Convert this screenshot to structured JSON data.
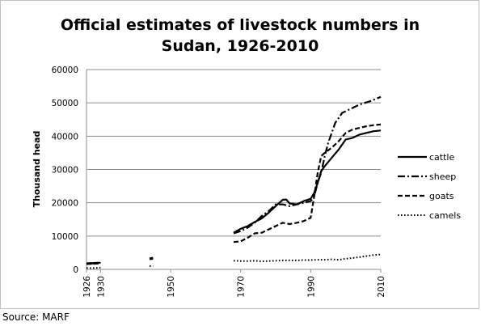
{
  "chart_data": {
    "type": "line",
    "title": "Official estimates of livestock numbers in Sudan, 1926-2010",
    "title_lines": [
      "Official estimates of livestock numbers in",
      "Sudan, 1926-2010"
    ],
    "xlabel": "",
    "ylabel": "Thousand head",
    "xlim": [
      1926,
      2010
    ],
    "ylim": [
      0,
      60000
    ],
    "x_ticks": [
      1926,
      1930,
      1950,
      1970,
      1990,
      2010
    ],
    "y_ticks": [
      0,
      10000,
      20000,
      30000,
      40000,
      50000,
      60000
    ],
    "grid": "horizontal",
    "legend_position": "right",
    "series": [
      {
        "name": "cattle",
        "style": "solid",
        "segments": [
          [
            [
              1926,
              1800
            ],
            [
              1927,
              1900
            ],
            [
              1928,
              1900
            ],
            [
              1929,
              2000
            ],
            [
              1930,
              2000
            ]
          ],
          [
            [
              1968,
              11000
            ],
            [
              1970,
              12200
            ],
            [
              1972,
              13000
            ],
            [
              1974,
              14200
            ],
            [
              1976,
              15300
            ],
            [
              1978,
              17000
            ],
            [
              1980,
              19000
            ],
            [
              1982,
              20900
            ],
            [
              1983,
              21000
            ],
            [
              1984,
              19800
            ],
            [
              1986,
              19500
            ],
            [
              1988,
              20500
            ],
            [
              1990,
              21200
            ],
            [
              1991,
              23000
            ],
            [
              1992,
              26000
            ],
            [
              1993,
              29500
            ],
            [
              1994,
              31000
            ],
            [
              1996,
              33500
            ],
            [
              1998,
              36000
            ],
            [
              2000,
              39000
            ],
            [
              2002,
              39500
            ],
            [
              2004,
              40500
            ],
            [
              2006,
              41000
            ],
            [
              2008,
              41500
            ],
            [
              2010,
              41700
            ]
          ]
        ]
      },
      {
        "name": "sheep",
        "style": "dashdot",
        "segments": [
          [
            [
              1926,
              1700
            ],
            [
              1928,
              1800
            ],
            [
              1930,
              1900
            ]
          ],
          [
            [
              1944,
              3300
            ],
            [
              1945,
              3500
            ]
          ],
          [
            [
              1968,
              10800
            ],
            [
              1970,
              11500
            ],
            [
              1972,
              12500
            ],
            [
              1974,
              14000
            ],
            [
              1976,
              16000
            ],
            [
              1978,
              17500
            ],
            [
              1980,
              19500
            ],
            [
              1982,
              19500
            ],
            [
              1984,
              19000
            ],
            [
              1986,
              19500
            ],
            [
              1988,
              20000
            ],
            [
              1990,
              20500
            ],
            [
              1991,
              22000
            ],
            [
              1992,
              26000
            ],
            [
              1993,
              29000
            ],
            [
              1994,
              34000
            ],
            [
              1995,
              38000
            ],
            [
              1997,
              44000
            ],
            [
              1999,
              47000
            ],
            [
              2001,
              48000
            ],
            [
              2004,
              49500
            ],
            [
              2007,
              50500
            ],
            [
              2010,
              51800
            ]
          ]
        ]
      },
      {
        "name": "goats",
        "style": "dashed",
        "segments": [
          [
            [
              1926,
              1600
            ],
            [
              1928,
              1700
            ],
            [
              1930,
              1800
            ]
          ],
          [
            [
              1944,
              3000
            ],
            [
              1945,
              3200
            ]
          ],
          [
            [
              1968,
              8200
            ],
            [
              1970,
              8400
            ],
            [
              1972,
              9500
            ],
            [
              1974,
              10800
            ],
            [
              1976,
              11000
            ],
            [
              1978,
              12000
            ],
            [
              1980,
              13000
            ],
            [
              1982,
              14000
            ],
            [
              1984,
              13600
            ],
            [
              1986,
              14000
            ],
            [
              1988,
              14500
            ],
            [
              1990,
              15500
            ],
            [
              1991,
              22000
            ],
            [
              1992,
              29000
            ],
            [
              1993,
              34000
            ],
            [
              1994,
              35000
            ],
            [
              1996,
              36500
            ],
            [
              1998,
              38500
            ],
            [
              2000,
              41000
            ],
            [
              2002,
              42000
            ],
            [
              2004,
              42500
            ],
            [
              2006,
              43000
            ],
            [
              2008,
              43300
            ],
            [
              2010,
              43500
            ]
          ]
        ]
      },
      {
        "name": "camels",
        "style": "dotted",
        "segments": [
          [
            [
              1926,
              400
            ],
            [
              1928,
              400
            ],
            [
              1930,
              500
            ]
          ],
          [
            [
              1944,
              1000
            ],
            [
              1945,
              1000
            ]
          ],
          [
            [
              1968,
              2600
            ],
            [
              1970,
              2500
            ],
            [
              1972,
              2500
            ],
            [
              1974,
              2600
            ],
            [
              1976,
              2400
            ],
            [
              1978,
              2500
            ],
            [
              1980,
              2600
            ],
            [
              1982,
              2700
            ],
            [
              1984,
              2700
            ],
            [
              1986,
              2700
            ],
            [
              1988,
              2800
            ],
            [
              1990,
              2800
            ],
            [
              1992,
              2900
            ],
            [
              1994,
              2900
            ],
            [
              1996,
              3000
            ],
            [
              1998,
              2900
            ],
            [
              2000,
              3200
            ],
            [
              2002,
              3400
            ],
            [
              2004,
              3700
            ],
            [
              2006,
              4000
            ],
            [
              2008,
              4300
            ],
            [
              2010,
              4500
            ]
          ]
        ]
      }
    ]
  },
  "footer": {
    "source": "Source: MARF"
  }
}
